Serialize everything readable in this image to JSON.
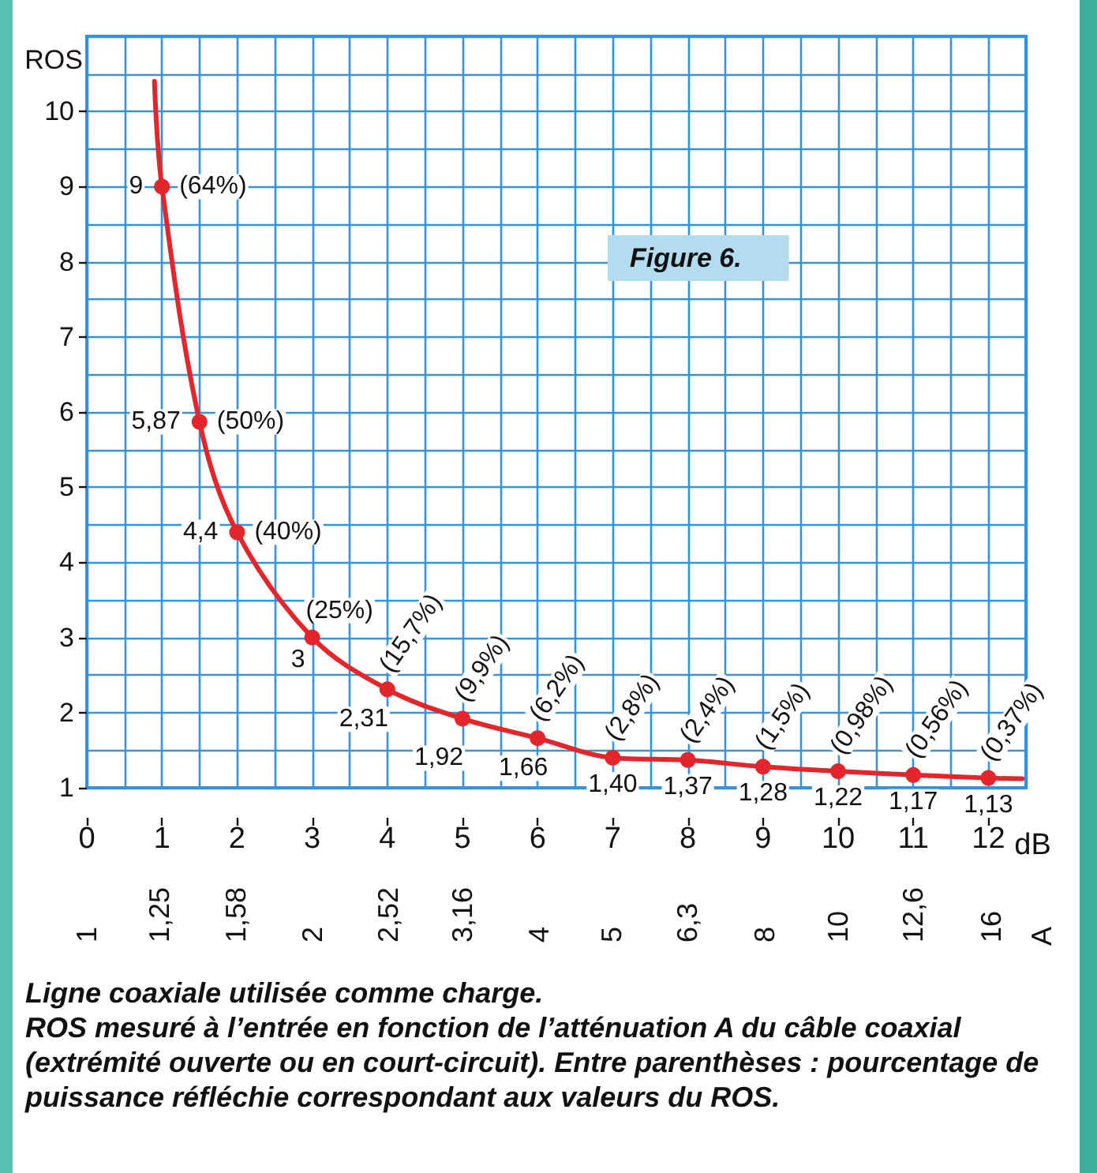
{
  "chart_data": {
    "type": "line",
    "title": "Figure 6.",
    "xlabel": "dB",
    "ylabel": "ROS",
    "x2label": "A",
    "xlim": [
      0,
      12.5
    ],
    "xticks": [
      0,
      1,
      2,
      3,
      4,
      5,
      6,
      7,
      8,
      9,
      10,
      11,
      12
    ],
    "ylim": [
      1,
      11
    ],
    "yticks": [
      1,
      2,
      3,
      4,
      5,
      6,
      7,
      8,
      9,
      10
    ],
    "x2lim": [
      1,
      17.8
    ],
    "x2ticks": [
      1,
      {
        "value": 1.25,
        "label": "1,25"
      },
      {
        "value": 1.58,
        "label": "1,58"
      },
      2,
      {
        "value": 2.52,
        "label": "2,52"
      },
      {
        "value": 3.16,
        "label": "3,16"
      },
      4,
      5,
      {
        "value": 6.3,
        "label": "6,3"
      },
      8,
      10,
      {
        "value": 12.6,
        "label": "12,6"
      },
      16
    ],
    "log": "x2",
    "grid": true,
    "series": [
      {
        "color": "#e3262b",
        "marker": "none",
        "x": [
          0.9,
          1,
          1.5,
          2,
          3,
          4,
          5,
          6,
          7,
          8,
          9,
          10,
          11,
          12,
          12.45
        ],
        "values": [
          10.4,
          9,
          5.87,
          4.4,
          3,
          2.31,
          1.92,
          1.66,
          1.4,
          1.37,
          1.28,
          1.22,
          1.17,
          1.13,
          1.12
        ]
      },
      {
        "type": "scatter",
        "color": "#e3262b",
        "marker": "circle",
        "x": [
          1,
          1.5,
          2,
          3,
          4,
          5,
          6,
          7,
          8,
          9,
          10,
          11,
          12
        ],
        "values": [
          9,
          5.87,
          4.4,
          3,
          2.31,
          1.92,
          1.66,
          1.4,
          1.37,
          1.28,
          1.22,
          1.17,
          1.13
        ],
        "value_labels": [
          "9",
          "5,87",
          "4,4",
          "3",
          "2,31",
          "1,92",
          "1,66",
          "1,40",
          "1,37",
          "1,28",
          "1,22",
          "1,17",
          "1,13"
        ]
      }
    ],
    "annotations": [
      {
        "text": "(64%)",
        "x": 1,
        "y": 9
      },
      {
        "text": "(50%)",
        "x": 1.5,
        "y": 5.87
      },
      {
        "text": "(40%)",
        "x": 2,
        "y": 4.4
      },
      {
        "text": "(25%)",
        "x": 3,
        "y": 3
      },
      {
        "text": "(15,7%)",
        "x": 4,
        "y": 2.31
      },
      {
        "text": "(9,9%)",
        "x": 5,
        "y": 1.92
      },
      {
        "text": "(6,2%)",
        "x": 6,
        "y": 1.66
      },
      {
        "text": "(2,8%)",
        "x": 7,
        "y": 1.4
      },
      {
        "text": "(2,4%)",
        "x": 8,
        "y": 1.37
      },
      {
        "text": "(1,5%)",
        "x": 9,
        "y": 1.28
      },
      {
        "text": "(0,98%)",
        "x": 10,
        "y": 1.22
      },
      {
        "text": "(0,56%)",
        "x": 11,
        "y": 1.17
      },
      {
        "text": "(0,37%)",
        "x": 12,
        "y": 1.13
      },
      "Ligne coaxiale utilisée comme charge.",
      "ROS mesuré à l’entrée en fonction de l’atténuation A du câble coaxial (extrémité ouverte ou en court-circuit). Entre parenthèses : pourcentage de puissance réfléchie correspondant aux valeurs du ROS."
    ]
  }
}
